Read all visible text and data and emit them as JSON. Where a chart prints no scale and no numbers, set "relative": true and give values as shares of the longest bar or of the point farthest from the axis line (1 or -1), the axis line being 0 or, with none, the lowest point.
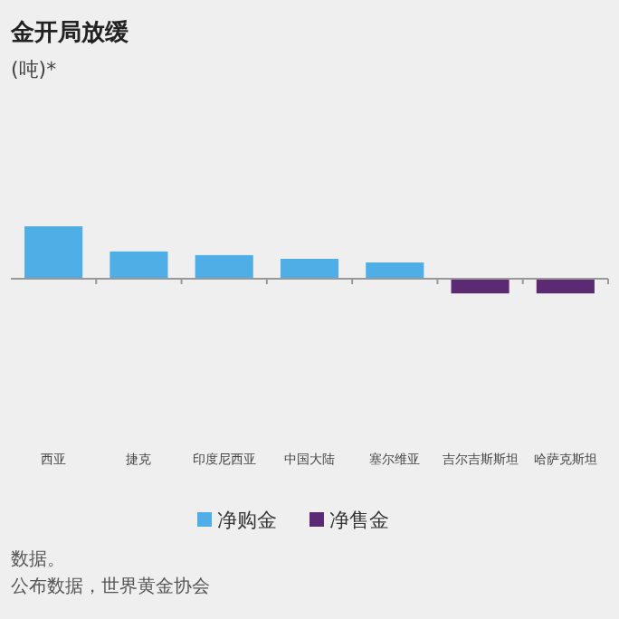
{
  "chart_data": {
    "type": "bar",
    "title": "金开局放缓",
    "relative": true,
    "legend": "bottom",
    "categories": [
      "西亚",
      "捷克",
      "印度尼西亚",
      "中国大陆",
      "塞尔维亚",
      "吉尔吉斯斯坦",
      "哈萨克斯坦"
    ],
    "series": [
      {
        "name": "净购金",
        "color": "#4eaee5",
        "values": [
          1,
          0.52,
          0.45,
          0.38,
          0.31,
          null,
          null
        ]
      },
      {
        "name": "净售金",
        "color": "#5b2a73",
        "values": [
          null,
          null,
          null,
          null,
          null,
          -0.28,
          -0.28
        ]
      }
    ],
    "annotations": [
      "(吨)*",
      "数据。",
      "公布数据，世界黄金协会"
    ]
  }
}
